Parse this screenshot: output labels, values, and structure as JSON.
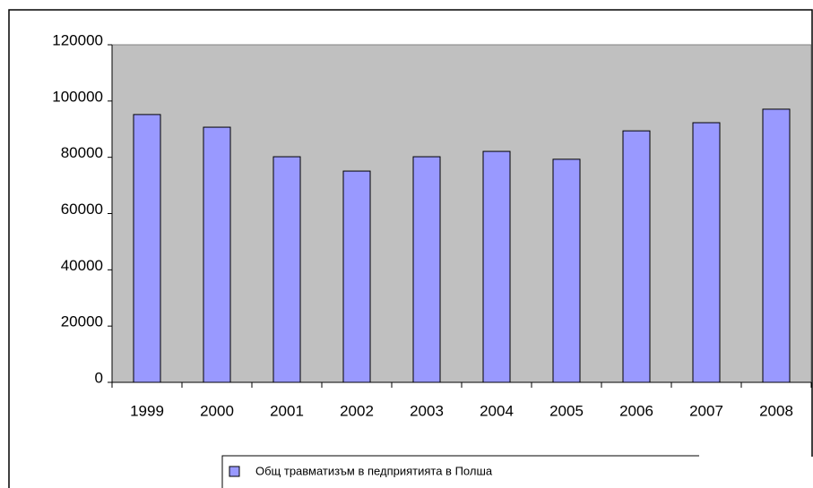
{
  "chart_data": {
    "type": "bar",
    "categories": [
      "1999",
      "2000",
      "2001",
      "2002",
      "2003",
      "2004",
      "2005",
      "2006",
      "2007",
      "2008"
    ],
    "series": [
      {
        "name": "Общ травматизъм в педприятията в Полша",
        "color": "#9999ff",
        "values": [
          95200,
          90700,
          80200,
          75100,
          80200,
          82100,
          79300,
          89400,
          92300,
          97100
        ]
      }
    ],
    "ylim": [
      0,
      120000
    ],
    "yticks": [
      0,
      20000,
      40000,
      60000,
      80000,
      100000,
      120000
    ],
    "plot_background": "#c0c0c0",
    "grid": false,
    "legend": "bottom"
  }
}
